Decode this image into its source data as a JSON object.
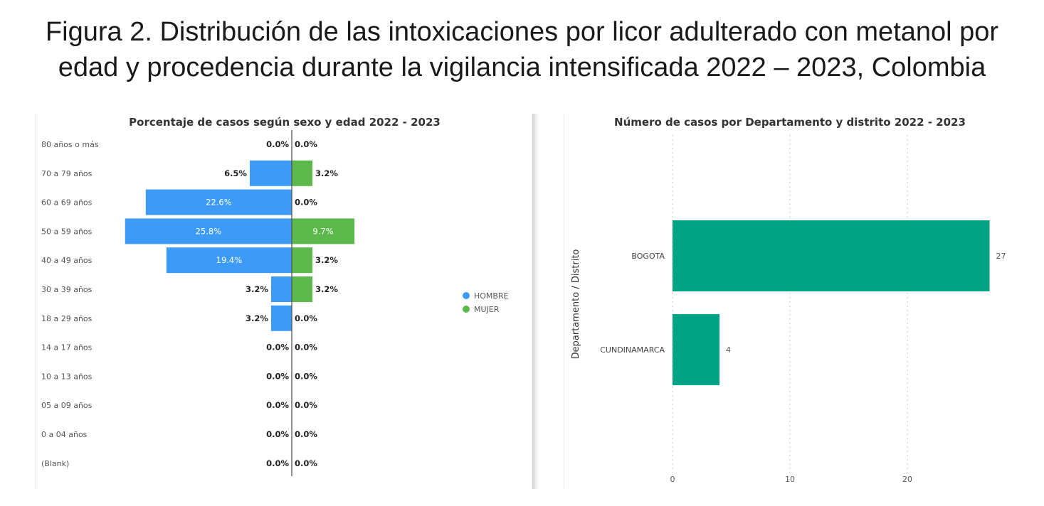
{
  "figure": {
    "title_line1": "Figura 2. Distribución de las intoxicaciones por licor adulterado con metanol por",
    "title_line2": "edad y procedencia durante la vigilancia intensificada 2022 – 2023, Colombia"
  },
  "colors": {
    "hombre": "#3d9bf5",
    "mujer": "#5cb84b",
    "bar_green": "#00a383"
  },
  "chart_data": [
    {
      "type": "bar",
      "orientation": "horizontal-diverging",
      "title": "Porcentaje de casos según sexo y edad 2022 - 2023",
      "categories": [
        "80 años o más",
        "70 a 79 años",
        "60 a 69 años",
        "50 a 59 años",
        "40 a 49 años",
        "30 a 39 años",
        "18 a 29 años",
        "14 a 17 años",
        "10 a 13 años",
        "05 a 09 años",
        "0 a 04 años",
        "(Blank)"
      ],
      "series": [
        {
          "name": "HOMBRE",
          "values": [
            0.0,
            6.5,
            22.6,
            25.8,
            19.4,
            3.2,
            3.2,
            0.0,
            0.0,
            0.0,
            0.0,
            0.0
          ],
          "labels": [
            "0.0%",
            "6.5%",
            "22.6%",
            "25.8%",
            "19.4%",
            "3.2%",
            "3.2%",
            "0.0%",
            "0.0%",
            "0.0%",
            "0.0%",
            "0.0%"
          ]
        },
        {
          "name": "MUJER",
          "values": [
            0.0,
            3.2,
            0.0,
            9.7,
            3.2,
            3.2,
            0.0,
            0.0,
            0.0,
            0.0,
            0.0,
            0.0
          ],
          "labels": [
            "0.0%",
            "3.2%",
            "0.0%",
            "9.7%",
            "3.2%",
            "3.2%",
            "0.0%",
            "0.0%",
            "0.0%",
            "0.0%",
            "0.0%",
            "0.0%"
          ]
        }
      ],
      "legend": [
        "HOMBRE",
        "MUJER"
      ],
      "legend_position": "right",
      "xlim": [
        -30,
        30
      ]
    },
    {
      "type": "bar",
      "orientation": "horizontal",
      "title": "Número de casos por Departamento y distrito 2022 - 2023",
      "ylabel": "Departamento / Distrito",
      "categories": [
        "BOGOTA",
        "CUNDINAMARCA"
      ],
      "values": [
        27,
        4
      ],
      "labels": [
        "27",
        "4"
      ],
      "xlim": [
        0,
        28
      ],
      "xticks": [
        0,
        10,
        20
      ],
      "xtick_labels": [
        "0",
        "10",
        "20"
      ],
      "grid": true
    }
  ]
}
